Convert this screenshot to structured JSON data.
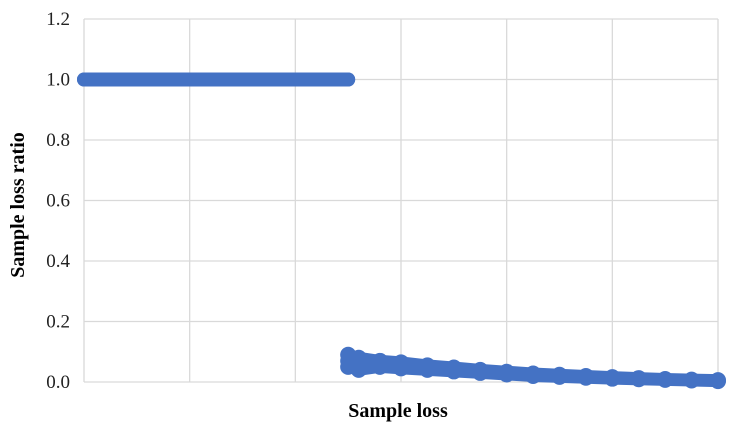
{
  "chart_data": {
    "type": "scatter",
    "title": "",
    "xlabel": "Sample loss",
    "ylabel": "Sample loss ratio",
    "ylim": [
      0,
      1.2
    ],
    "yticks": [
      "0.0",
      "0.2",
      "0.4",
      "0.6",
      "0.8",
      "1.0",
      "1.2"
    ],
    "xlim": [
      0,
      6
    ],
    "x_tick_labels_shown": false,
    "grid": true,
    "legend": "none",
    "series_color": "#4472C4",
    "series": [
      {
        "points": [
          [
            0.0,
            1.0
          ],
          [
            0.5,
            1.0
          ],
          [
            1.0,
            1.0
          ],
          [
            1.5,
            1.0
          ],
          [
            2.0,
            1.0
          ],
          [
            2.5,
            1.0
          ],
          [
            2.5,
            0.09
          ],
          [
            2.5,
            0.07
          ],
          [
            2.5,
            0.05
          ],
          [
            2.6,
            0.08
          ],
          [
            2.6,
            0.06
          ],
          [
            2.6,
            0.04
          ],
          [
            2.8,
            0.07
          ],
          [
            2.8,
            0.05
          ],
          [
            3.0,
            0.065
          ],
          [
            3.0,
            0.045
          ],
          [
            3.25,
            0.055
          ],
          [
            3.25,
            0.04
          ],
          [
            3.5,
            0.048
          ],
          [
            3.5,
            0.035
          ],
          [
            3.75,
            0.04
          ],
          [
            3.75,
            0.03
          ],
          [
            4.0,
            0.034
          ],
          [
            4.0,
            0.025
          ],
          [
            4.25,
            0.028
          ],
          [
            4.25,
            0.02
          ],
          [
            4.5,
            0.024
          ],
          [
            4.5,
            0.017
          ],
          [
            4.75,
            0.02
          ],
          [
            4.75,
            0.014
          ],
          [
            5.0,
            0.016
          ],
          [
            5.0,
            0.011
          ],
          [
            5.25,
            0.013
          ],
          [
            5.25,
            0.009
          ],
          [
            5.5,
            0.01
          ],
          [
            5.5,
            0.007
          ],
          [
            5.75,
            0.008
          ],
          [
            5.75,
            0.005
          ],
          [
            6.0,
            0.006
          ],
          [
            6.0,
            0.003
          ]
        ]
      }
    ]
  }
}
